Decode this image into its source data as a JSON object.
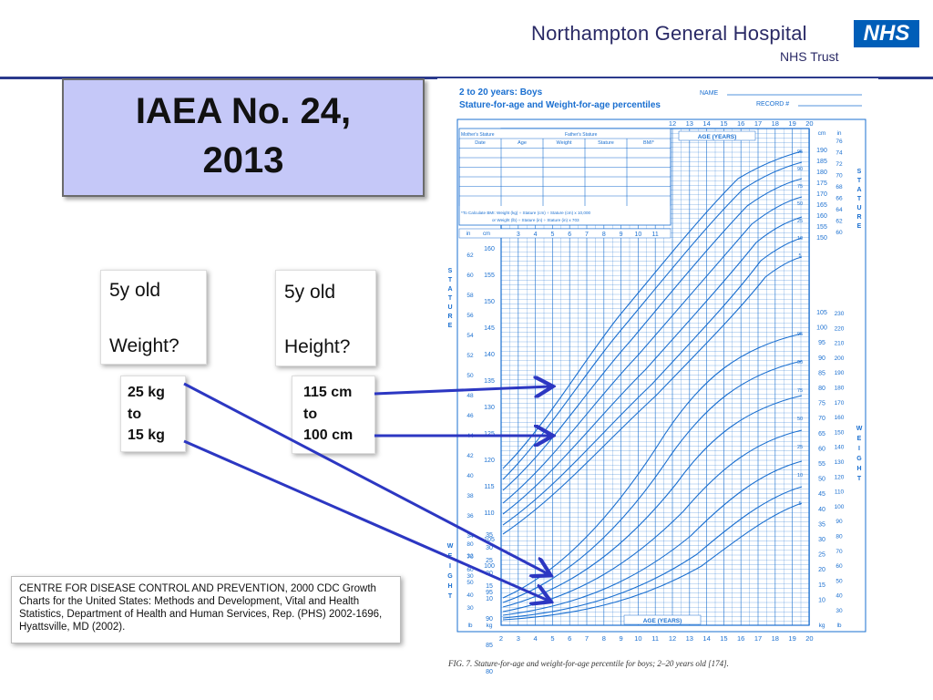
{
  "header": {
    "hospital_name": "Northampton General Hospital",
    "trust_name": "NHS Trust",
    "logo_text": "NHS"
  },
  "title": {
    "line1": "IAEA No. 24,",
    "line2": "2013"
  },
  "weight_card": {
    "line1": "5y old",
    "line2": "Weight?"
  },
  "height_card": {
    "line1": "5y old",
    "line2": "Height?"
  },
  "weight_range": {
    "line1": "25 kg",
    "line2": "to",
    "line3": "15 kg"
  },
  "height_range": {
    "line1": "115 cm",
    "line2": "to",
    "line3": "100 cm"
  },
  "chart": {
    "heading1": "2 to 20 years: Boys",
    "heading2": "Stature-for-age and Weight-for-age percentiles",
    "name_label": "NAME",
    "record_label": "RECORD #",
    "age_label": "AGE (YEARS)",
    "stature_vertical": "STATURE",
    "weight_vertical": "WEIGHT",
    "unit_cm": "cm",
    "unit_in": "in",
    "unit_kg": "kg",
    "unit_lb": "lb",
    "table_header": [
      "Date",
      "Age",
      "Weight",
      "Stature",
      "BMI*"
    ],
    "mothers_stature": "Mother's Stature",
    "fathers_stature": "Father's Stature",
    "bmi_note": "*To Calculate BMI: Weight (kg) ÷ Stature (cm) ÷ Stature (cm) x 10,000",
    "bmi_note2": "or Weight (lb) ÷ Stature (in) ÷ Stature (in) x 703",
    "caption": "FIG. 7.  Stature-for-age and weight-for-age percentile for boys; 2–20 years old [174].",
    "bottom_ages": [
      "2",
      "3",
      "4",
      "5",
      "6",
      "7",
      "8",
      "9",
      "10",
      "11",
      "12",
      "13",
      "14",
      "15",
      "16",
      "17",
      "18",
      "19",
      "20"
    ],
    "top_ages": [
      "12",
      "13",
      "14",
      "15",
      "16",
      "17",
      "18",
      "19",
      "20"
    ],
    "inner_ages": [
      "3",
      "4",
      "5",
      "6",
      "7",
      "8",
      "9",
      "10",
      "11"
    ],
    "left_cm_ticks": [
      "160",
      "155",
      "150",
      "145",
      "140",
      "135",
      "130",
      "125",
      "120",
      "115",
      "110",
      "105",
      "100",
      "95",
      "90",
      "85",
      "80"
    ],
    "left_in_ticks": [
      "62",
      "60",
      "58",
      "56",
      "54",
      "52",
      "50",
      "48",
      "46",
      "44",
      "42",
      "40",
      "38",
      "36",
      "34",
      "32",
      "30"
    ],
    "right_cm_ticks": [
      "190",
      "185",
      "180",
      "175",
      "170",
      "165",
      "160",
      "155",
      "150"
    ],
    "right_in_ticks": [
      "76",
      "74",
      "72",
      "70",
      "68",
      "66",
      "64",
      "62",
      "60"
    ],
    "right_kg_ticks": [
      "105",
      "100",
      "95",
      "90",
      "85",
      "80",
      "75",
      "70",
      "65",
      "60",
      "55",
      "50",
      "45",
      "40",
      "35",
      "30",
      "25",
      "20",
      "15",
      "10"
    ],
    "right_lb_ticks": [
      "230",
      "220",
      "210",
      "200",
      "190",
      "180",
      "170",
      "160",
      "150",
      "140",
      "130",
      "120",
      "110",
      "100",
      "90",
      "80",
      "70",
      "60",
      "50",
      "40",
      "30"
    ],
    "left_kg_ticks": [
      "35",
      "30",
      "25",
      "20",
      "15",
      "10"
    ],
    "left_lb_ticks": [
      "80",
      "70",
      "60",
      "50",
      "40",
      "30"
    ],
    "stature_pct_labels": [
      "95",
      "90",
      "75",
      "50",
      "25",
      "10",
      "5"
    ],
    "weight_pct_labels": [
      "95",
      "90",
      "75",
      "50",
      "25",
      "10",
      "5"
    ]
  },
  "citation": {
    "text": "CENTRE FOR DISEASE CONTROL AND PREVENTION, 2000 CDC Growth Charts for the United States: Methods and Development, Vital and Health Statistics, Department of Health and Human Services, Rep. (PHS) 2002-1696, Hyattsville, MD (2002)."
  },
  "colors": {
    "accent_blue": "#2b3a8c",
    "title_bg": "#c5c8f8",
    "chart_blue": "#1a6fd0",
    "arrow_blue": "#2c37c2",
    "nhs_blue": "#005eb8"
  },
  "icons": [
    "nhs-logo",
    "arrow-icon"
  ]
}
